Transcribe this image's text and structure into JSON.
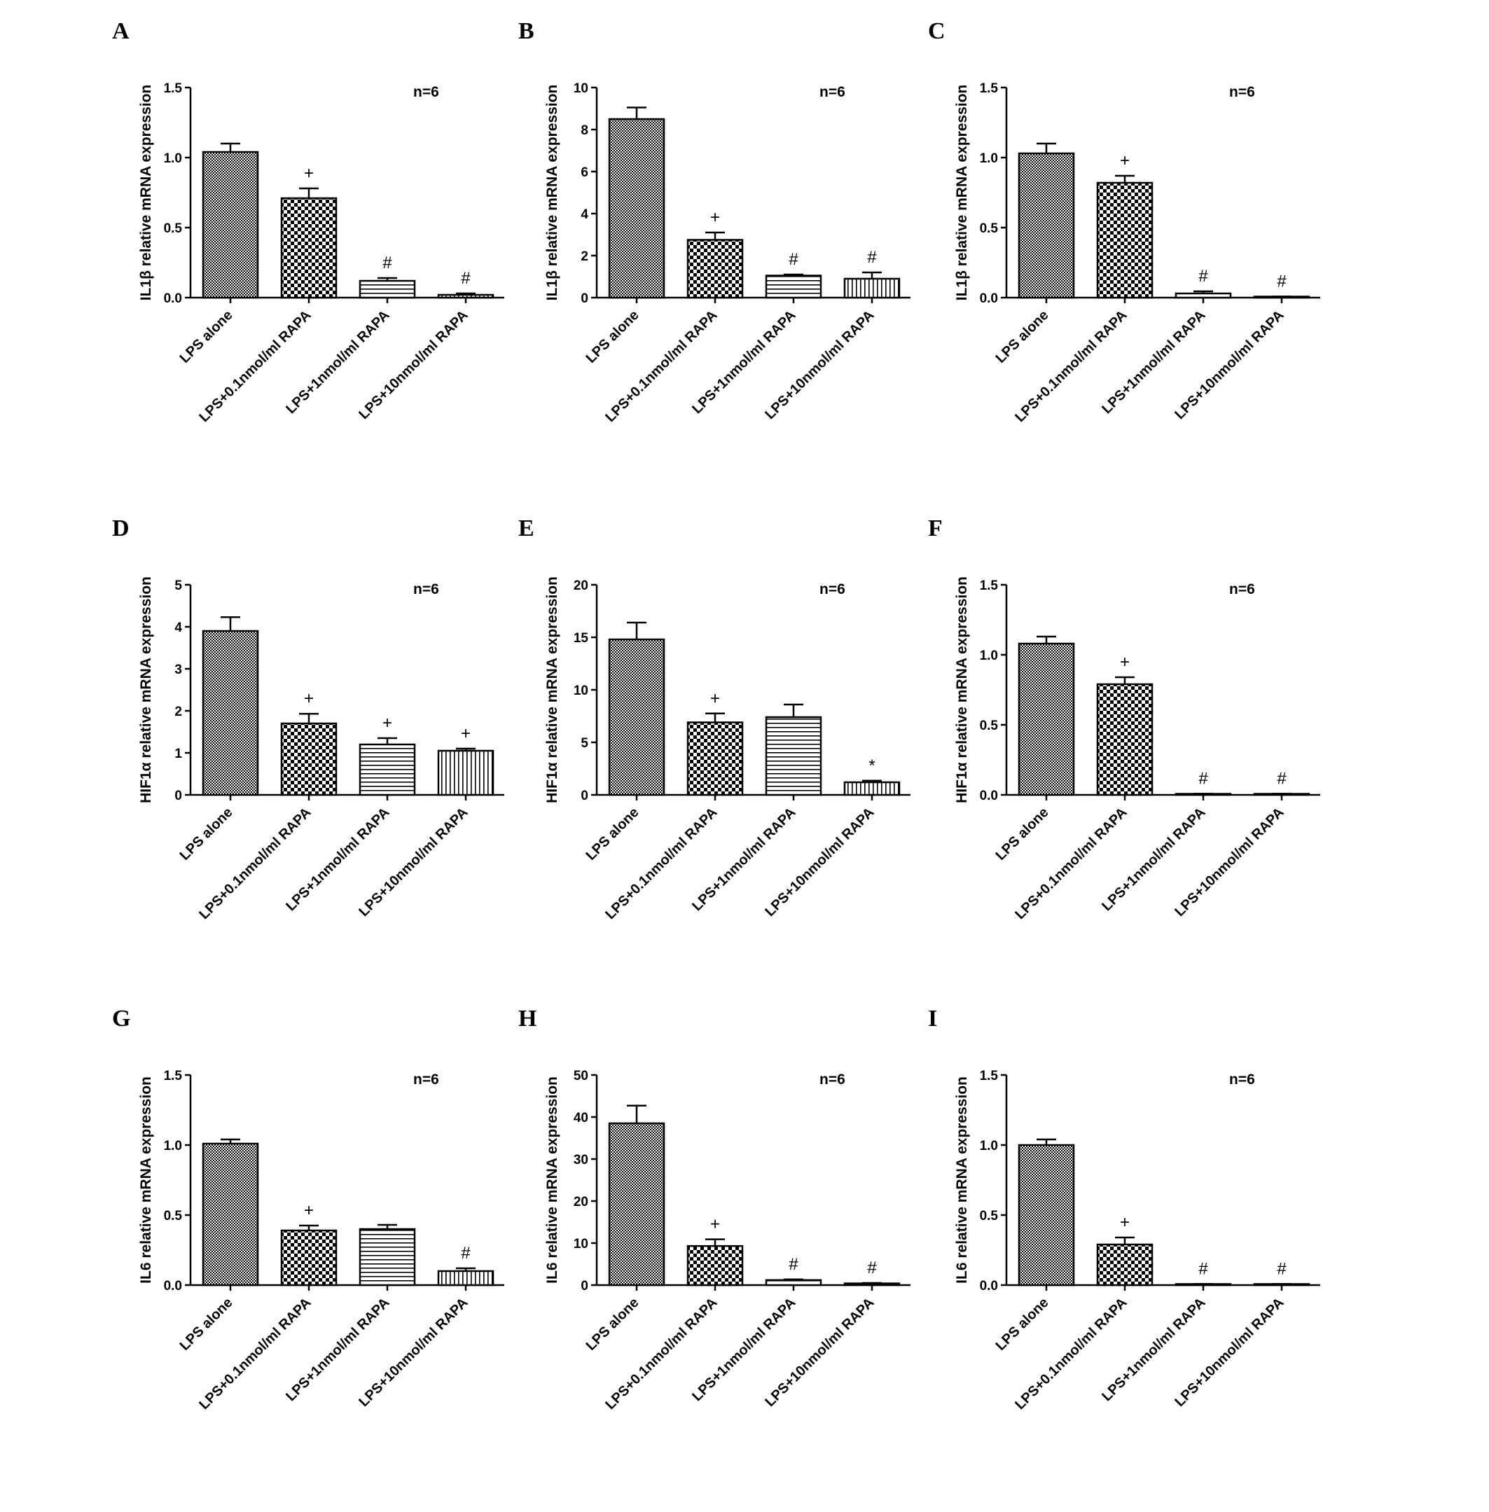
{
  "chart_data": [
    {
      "panel": "A",
      "type": "bar",
      "ylabel": "IL1β  relative mRNA expression",
      "n_label": "n=6",
      "categories": [
        "LPS alone",
        "LPS+0.1nmol/ml RAPA",
        "LPS+1nmol/ml RAPA",
        "LPS+10nmol/ml RAPA"
      ],
      "values": [
        1.04,
        0.71,
        0.12,
        0.02
      ],
      "errors": [
        0.06,
        0.07,
        0.02,
        0.01
      ],
      "annotations": [
        "",
        "+",
        "#",
        "#"
      ],
      "patterns": [
        "fine",
        "check",
        "hlines",
        "vlines"
      ],
      "ylim": [
        0,
        1.5
      ],
      "yticks": [
        "0.0",
        "0.5",
        "1.0",
        "1.5"
      ]
    },
    {
      "panel": "B",
      "type": "bar",
      "ylabel": "IL1β  relative mRNA expression",
      "n_label": "n=6",
      "categories": [
        "LPS alone",
        "LPS+0.1nmol/ml RAPA",
        "LPS+1nmol/ml RAPA",
        "LPS+10nmol/ml RAPA"
      ],
      "values": [
        8.5,
        2.75,
        1.05,
        0.9
      ],
      "errors": [
        0.55,
        0.35,
        0.05,
        0.3
      ],
      "annotations": [
        "",
        "+",
        "#",
        "#"
      ],
      "patterns": [
        "fine",
        "check",
        "hlines",
        "vlines"
      ],
      "ylim": [
        0,
        10
      ],
      "yticks": [
        "0",
        "2",
        "4",
        "6",
        "8",
        "10"
      ]
    },
    {
      "panel": "C",
      "type": "bar",
      "ylabel": "IL1β  relative mRNA expression",
      "n_label": "n=6",
      "categories": [
        "LPS alone",
        "LPS+0.1nmol/ml RAPA",
        "LPS+1nmol/ml RAPA",
        "LPS+10nmol/ml RAPA"
      ],
      "values": [
        1.03,
        0.82,
        0.03,
        0.005
      ],
      "errors": [
        0.07,
        0.05,
        0.015,
        0.003
      ],
      "annotations": [
        "",
        "+",
        "#",
        "#"
      ],
      "patterns": [
        "fine",
        "check",
        "hlines",
        "vlines"
      ],
      "ylim": [
        0,
        1.5
      ],
      "yticks": [
        "0.0",
        "0.5",
        "1.0",
        "1.5"
      ]
    },
    {
      "panel": "D",
      "type": "bar",
      "ylabel": "HIF1α relative mRNA expression",
      "n_label": "n=6",
      "categories": [
        "LPS alone",
        "LPS+0.1nmol/ml RAPA",
        "LPS+1nmol/ml RAPA",
        "LPS+10nmol/ml RAPA"
      ],
      "values": [
        3.9,
        1.7,
        1.2,
        1.05
      ],
      "errors": [
        0.33,
        0.23,
        0.15,
        0.05
      ],
      "annotations": [
        "",
        "+",
        "+",
        "+"
      ],
      "patterns": [
        "fine",
        "check",
        "hlines",
        "vlines"
      ],
      "ylim": [
        0,
        5
      ],
      "yticks": [
        "0",
        "1",
        "2",
        "3",
        "4",
        "5"
      ]
    },
    {
      "panel": "E",
      "type": "bar",
      "ylabel": "HIF1α relative mRNA expression",
      "n_label": "n=6",
      "categories": [
        "LPS alone",
        "LPS+0.1nmol/ml RAPA",
        "LPS+1nmol/ml RAPA",
        "LPS+10nmol/ml RAPA"
      ],
      "values": [
        14.8,
        6.9,
        7.4,
        1.2
      ],
      "errors": [
        1.6,
        0.85,
        1.2,
        0.15
      ],
      "annotations": [
        "",
        "+",
        "",
        "*"
      ],
      "patterns": [
        "fine",
        "check",
        "hlines",
        "vlines"
      ],
      "ylim": [
        0,
        20
      ],
      "yticks": [
        "0",
        "5",
        "10",
        "15",
        "20"
      ]
    },
    {
      "panel": "F",
      "type": "bar",
      "ylabel": "HIF1α relative mRNA expression",
      "n_label": "n=6",
      "categories": [
        "LPS alone",
        "LPS+0.1nmol/ml RAPA",
        "LPS+1nmol/ml RAPA",
        "LPS+10nmol/ml RAPA"
      ],
      "values": [
        1.08,
        0.79,
        0.005,
        0.005
      ],
      "errors": [
        0.05,
        0.05,
        0.003,
        0.003
      ],
      "annotations": [
        "",
        "+",
        "#",
        "#"
      ],
      "patterns": [
        "fine",
        "check",
        "hlines",
        "vlines"
      ],
      "ylim": [
        0,
        1.5
      ],
      "yticks": [
        "0.0",
        "0.5",
        "1.0",
        "1.5"
      ]
    },
    {
      "panel": "G",
      "type": "bar",
      "ylabel": "IL6 relative mRNA expression",
      "n_label": "n=6",
      "categories": [
        "LPS alone",
        "LPS+0.1nmol/ml RAPA",
        "LPS+1nmol/ml RAPA",
        "LPS+10nmol/ml RAPA"
      ],
      "values": [
        1.01,
        0.39,
        0.4,
        0.1
      ],
      "errors": [
        0.03,
        0.035,
        0.03,
        0.02
      ],
      "annotations": [
        "",
        "+",
        "",
        "#"
      ],
      "patterns": [
        "fine",
        "check",
        "hlines",
        "vlines"
      ],
      "ylim": [
        0,
        1.5
      ],
      "yticks": [
        "0.0",
        "0.5",
        "1.0",
        "1.5"
      ]
    },
    {
      "panel": "H",
      "type": "bar",
      "ylabel": "IL6 relative mRNA expression",
      "n_label": "n=6",
      "categories": [
        "LPS alone",
        "LPS+0.1nmol/ml RAPA",
        "LPS+1nmol/ml RAPA",
        "LPS+10nmol/ml RAPA"
      ],
      "values": [
        38.5,
        9.3,
        1.2,
        0.4
      ],
      "errors": [
        4.2,
        1.6,
        0.15,
        0.1
      ],
      "annotations": [
        "",
        "+",
        "#",
        "#"
      ],
      "patterns": [
        "fine",
        "check",
        "hlines",
        "vlines"
      ],
      "ylim": [
        0,
        50
      ],
      "yticks": [
        "0",
        "10",
        "20",
        "30",
        "40",
        "50"
      ]
    },
    {
      "panel": "I",
      "type": "bar",
      "ylabel": "IL6 relative mRNA expression",
      "n_label": "n=6",
      "categories": [
        "LPS alone",
        "LPS+0.1nmol/ml RAPA",
        "LPS+1nmol/ml RAPA",
        "LPS+10nmol/ml RAPA"
      ],
      "values": [
        1.0,
        0.29,
        0.005,
        0.005
      ],
      "errors": [
        0.04,
        0.05,
        0.003,
        0.003
      ],
      "annotations": [
        "",
        "+",
        "#",
        "#"
      ],
      "patterns": [
        "fine",
        "check",
        "hlines",
        "vlines"
      ],
      "ylim": [
        0,
        1.5
      ],
      "yticks": [
        "0.0",
        "0.5",
        "1.0",
        "1.5"
      ]
    }
  ]
}
